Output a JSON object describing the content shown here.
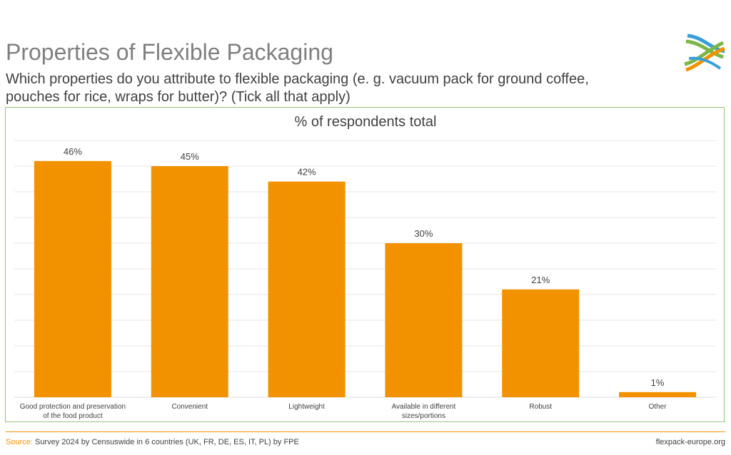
{
  "header": {
    "title": "Properties of Flexible Packaging",
    "subtitle": "Which properties do you attribute to flexible packaging (e. g. vacuum pack for ground coffee, pouches for rice, wraps for butter)? (Tick all that apply)"
  },
  "logo": {
    "icon": "flexpack-europe-logo",
    "colors": [
      "#7ab648",
      "#f39200",
      "#3a9fd8"
    ]
  },
  "chart_data": {
    "type": "bar",
    "title": "% of respondents total",
    "categories": [
      "Good protection and preservation of the food product",
      "Convenient",
      "Lightweight",
      "Available in different sizes/portions",
      "Robust",
      "Other"
    ],
    "values": [
      46,
      45,
      42,
      30,
      21,
      1
    ],
    "value_labels": [
      "46%",
      "45%",
      "42%",
      "30%",
      "21%",
      "1%"
    ],
    "ylim": [
      0,
      50
    ],
    "grid": true,
    "bar_color": "#f39200",
    "grid_color": "#e6e6e6"
  },
  "footer": {
    "source_label": "Source:",
    "source_text": " Survey 2024 by Censuswide in 6 countries (UK, FR, DE, ES, IT, PL) by FPE",
    "site": "flexpack-europe.org"
  }
}
